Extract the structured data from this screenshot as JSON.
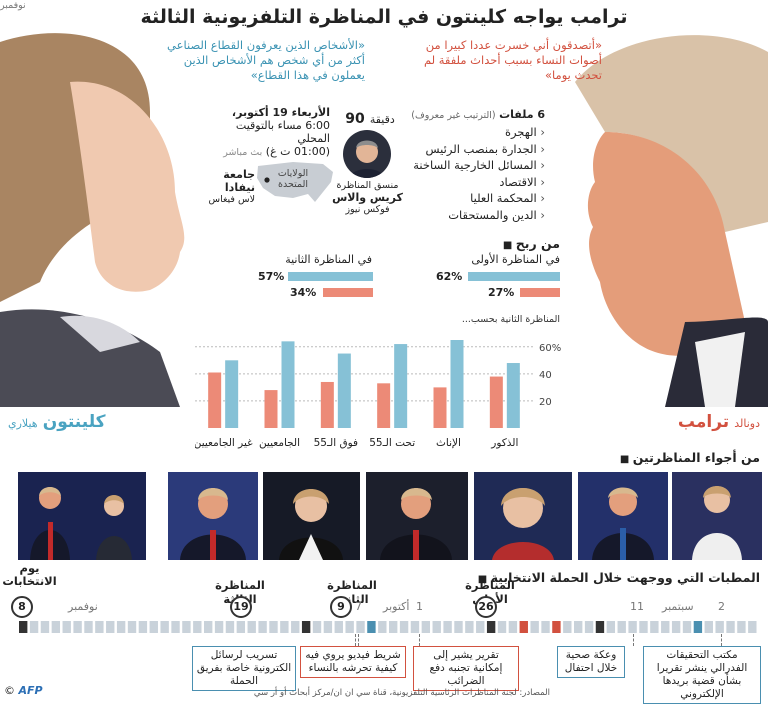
{
  "header": {
    "title": "ترامب يواجه كلينتون في المناظرة التلفزيونية الثالثة"
  },
  "quotes": {
    "trump": "«أتصدقون أني خسرت عددا كبيرا من أصوات النساء بسبب أحداث ملفقة لم تحدث يوما»",
    "clinton": "«الأشخاص الذين يعرفون القطاع الصناعي أكثر من أي شخص هم الأشخاص الذين يعملون في هذا القطاع»"
  },
  "event": {
    "date": "الأربعاء 19 أكتوبر،",
    "time_local": "6:00 مساء بالتوقيت المحلي",
    "time_gmt": "(01:00 ت غ)",
    "live": "بث مباشر",
    "duration_value": "90",
    "duration_unit": "دقيقة",
    "moderator_role": "منسق المناظرة",
    "moderator_name": "كريس والاس",
    "moderator_network": "فوكس نيوز",
    "country": "الولايات المتحدة",
    "venue": "جامعة نيفادا",
    "city": "لاس فيغاس"
  },
  "topics": {
    "heading_count": "6 ملفات",
    "heading_note": "(الترتيب غير معروف)",
    "items": [
      "الهجرة",
      "الجدارة بمنصب الرئيس",
      "المسائل الخارجية الساخنة",
      "الاقتصاد",
      "المحكمة العليا",
      "الدين والمستحقات"
    ]
  },
  "winner": {
    "heading": "من ربح",
    "debate1_label": "في المناظرة الأولى",
    "debate1_clinton": 62,
    "debate1_trump": 27,
    "debate1_clinton_text": "62%",
    "debate1_trump_text": "27%",
    "debate2_label": "في المناظرة الثانية",
    "debate2_clinton": 57,
    "debate2_trump": 34,
    "debate2_clinton_text": "57%",
    "debate2_trump_text": "34%"
  },
  "candidates": {
    "clinton_first": "هيلاري",
    "clinton_last": "كلينتون",
    "trump_first": "دونالد",
    "trump_last": "ترامب"
  },
  "colors": {
    "clinton": "#86c1d6",
    "trump": "#ec8a77",
    "accent_blue": "#4aa3c1",
    "accent_red": "#d2513f"
  },
  "chart_data": {
    "type": "bar",
    "title": "المناظرة الثانية بحسب...",
    "categories": [
      "الذكور",
      "الإناث",
      "تحت الـ55",
      "فوق الـ55",
      "الجامعيين",
      "غير الجامعيين"
    ],
    "series": [
      {
        "name": "كلينتون",
        "values": [
          48,
          65,
          62,
          55,
          64,
          50
        ]
      },
      {
        "name": "ترامب",
        "values": [
          38,
          30,
          33,
          34,
          28,
          41
        ]
      }
    ],
    "ylim": [
      0,
      65
    ],
    "yticks": [
      20,
      40,
      60
    ],
    "ytick_labels": [
      "20",
      "40",
      "60%"
    ]
  },
  "atmosphere": {
    "heading": "من أجواء المناظرتين"
  },
  "timeline": {
    "heading": "المطبات التي ووجهت خلال الحملة الانتخابية",
    "election_day_label": "يوم الانتخابات",
    "election_day": "8",
    "third_debate": "المناظرة الثالثة",
    "third_day": "19",
    "second_debate": "المناظرة الثانية",
    "second_day": "9",
    "first_debate": "المناظرة الأولى",
    "first_day": "26",
    "month_nov": "نوفمبر",
    "month_oct": "أكتوبر",
    "month_sep": "سبتمبر",
    "day_7": "7",
    "day_1": "1",
    "day_11": "11",
    "day_2": "2",
    "notes": [
      "مكتب التحقيقات الفدرالي ينشر تقريرا بشأن قضية بريدها الإلكتروني",
      "وعكة صحية خلال احتفال",
      "تقرير يشير إلى إمكانية تجنبه دفع الضرائب",
      "شريط فيديو يروي فيه كيفية تحرشه بالنساء",
      "تسريب لرسائل الكترونية خاصة بفريق الحملة"
    ]
  },
  "footer": {
    "logo": "AFP",
    "copyright": "©",
    "sources": "المصادر: لجنة المناظرات الرئاسية التلفزيونية، قناة سي ان ان/مركز أبحاث أو أر سي"
  }
}
